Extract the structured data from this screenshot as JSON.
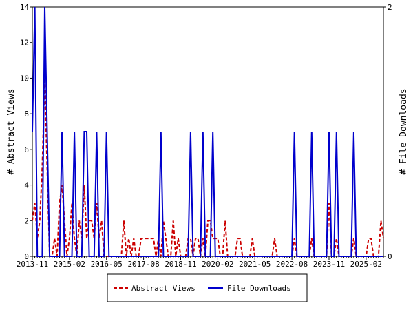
{
  "chart_data": {
    "type": "line",
    "title": "",
    "xlabel": "",
    "ylabel_left": "# Abstract Views",
    "ylabel_right": "# File Downloads",
    "ylim_left": [
      0,
      14
    ],
    "ylim_right": [
      0,
      2
    ],
    "left_ticks": [
      "0",
      "2",
      "4",
      "6",
      "8",
      "10",
      "12",
      "14"
    ],
    "right_ticks": [
      "0",
      "2"
    ],
    "x_tick_labels": [
      "2013-11",
      "2015-02",
      "2016-05",
      "2017-08",
      "2018-11",
      "2020-02",
      "2021-05",
      "2022-08",
      "2023-11",
      "2025-02"
    ],
    "x_start": "2013-11",
    "n_months": 143,
    "legend_position": "bottom",
    "series": [
      {
        "name": "Abstract Views",
        "axis": "left",
        "color": "#cc0000",
        "style": "dashed",
        "values": [
          2,
          3,
          1,
          2,
          5,
          10,
          5,
          0,
          0,
          1,
          0,
          3,
          4,
          2,
          0,
          1,
          3,
          1,
          0,
          2,
          1,
          4,
          1,
          2,
          2,
          1,
          3,
          1,
          2,
          0,
          0,
          0,
          0,
          0,
          0,
          0,
          0,
          2,
          0,
          1,
          0,
          1,
          0,
          0,
          1,
          1,
          1,
          1,
          1,
          1,
          0,
          1,
          0,
          2,
          1,
          0,
          0,
          2,
          0,
          1,
          0,
          0,
          0,
          1,
          1,
          0,
          1,
          1,
          0,
          1,
          0,
          2,
          2,
          1,
          1,
          1,
          0,
          0,
          2,
          0,
          0,
          0,
          0,
          1,
          1,
          0,
          0,
          0,
          0,
          1,
          0,
          0,
          0,
          0,
          0,
          0,
          0,
          0,
          1,
          0,
          0,
          0,
          0,
          0,
          0,
          0,
          1,
          0,
          0,
          0,
          0,
          0,
          0,
          1,
          0,
          0,
          0,
          0,
          0,
          0,
          3,
          0,
          0,
          1,
          0,
          0,
          0,
          0,
          0,
          0,
          1,
          0,
          0,
          0,
          0,
          0,
          1,
          1,
          0,
          0,
          0,
          2,
          1
        ]
      },
      {
        "name": "File Downloads",
        "axis": "right",
        "color": "#0000cc",
        "style": "solid",
        "values": [
          1,
          2,
          0,
          0,
          0,
          2,
          1,
          0,
          0,
          0,
          0,
          0,
          1,
          0,
          0,
          0,
          0,
          1,
          0,
          0,
          0,
          1,
          1,
          0,
          0,
          0,
          1,
          0,
          0,
          0,
          1,
          0,
          0,
          0,
          0,
          0,
          0,
          0,
          0,
          0,
          0,
          0,
          0,
          0,
          0,
          0,
          0,
          0,
          0,
          0,
          0,
          0,
          1,
          0,
          0,
          0,
          0,
          0,
          0,
          0,
          0,
          0,
          0,
          0,
          1,
          0,
          0,
          0,
          0,
          1,
          0,
          0,
          0,
          1,
          0,
          0,
          0,
          0,
          0,
          0,
          0,
          0,
          0,
          0,
          0,
          0,
          0,
          0,
          0,
          0,
          0,
          0,
          0,
          0,
          0,
          0,
          0,
          0,
          0,
          0,
          0,
          0,
          0,
          0,
          0,
          0,
          1,
          0,
          0,
          0,
          0,
          0,
          0,
          1,
          0,
          0,
          0,
          0,
          0,
          0,
          1,
          0,
          0,
          1,
          0,
          0,
          0,
          0,
          0,
          0,
          1,
          0,
          0,
          0,
          0,
          0,
          0,
          0,
          0,
          0,
          0,
          0,
          0
        ]
      }
    ]
  }
}
